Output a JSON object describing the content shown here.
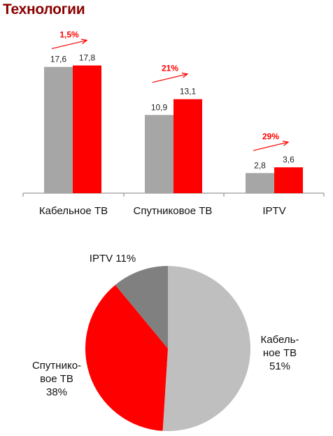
{
  "title": "Технологии",
  "colors": {
    "prev": "#a6a6a6",
    "curr": "#ff0000",
    "growth": "#ff0000",
    "pie_dark": "#808080",
    "pie_light": "#bfbfbf"
  },
  "chart_data": [
    {
      "type": "bar",
      "categories": [
        "Кабельное ТВ",
        "Спутниковое ТВ",
        "IPTV"
      ],
      "series": [
        {
          "values": [
            17.6,
            10.9,
            2.8
          ],
          "labels": [
            "17,6",
            "10,9",
            "2,8"
          ],
          "color": "#a6a6a6"
        },
        {
          "values": [
            17.8,
            13.1,
            3.6
          ],
          "labels": [
            "17,8",
            "13,1",
            "3,6"
          ],
          "color": "#ff0000"
        }
      ],
      "growth_labels": [
        "1,5%",
        "21%",
        "29%"
      ],
      "ylim": [
        0,
        20
      ],
      "grid": false
    },
    {
      "type": "pie",
      "slices": [
        {
          "label": "Кабель- ное ТВ",
          "value": 51,
          "pct": "51%",
          "color": "#bfbfbf"
        },
        {
          "label": "Спутнико- вое ТВ",
          "value": 38,
          "pct": "38%",
          "color": "#ff0000"
        },
        {
          "label": "IPTV",
          "value": 11,
          "pct": "11%",
          "color": "#808080"
        }
      ]
    }
  ]
}
